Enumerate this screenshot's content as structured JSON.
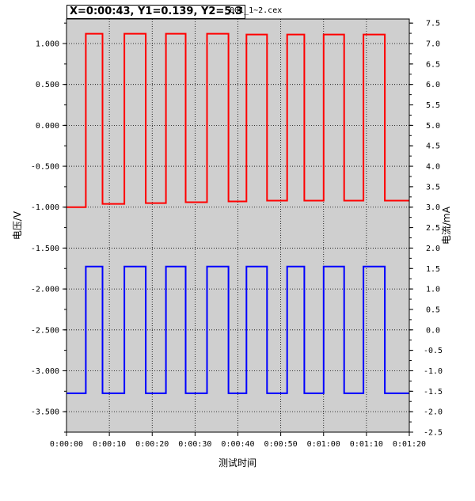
{
  "cursor_readout": "X=0:00:43, Y1=0.139, Y2=5.3",
  "file_name": "_001_1~2.cex",
  "chart_data": {
    "type": "line",
    "xlabel": "测试时间",
    "ylabel_left": "电压/V",
    "ylabel_right": "电流/mA",
    "xlim": [
      "0:00:00",
      "0:01:20"
    ],
    "ylim_left": [
      -3.75,
      1.3
    ],
    "ylim_right": [
      -2.5,
      7.6
    ],
    "x_ticks": [
      "0:00:00",
      "0:00:10",
      "0:00:20",
      "0:00:30",
      "0:00:40",
      "0:00:50",
      "0:01:00",
      "0:01:10",
      "0:01:20"
    ],
    "y_left_ticks": [
      "1.000",
      "0.500",
      "0.000",
      "-0.500",
      "-1.000",
      "-1.500",
      "-2.000",
      "-2.500",
      "-3.000",
      "-3.500"
    ],
    "y_right_ticks": [
      "7.5",
      "7.0",
      "6.5",
      "6.0",
      "5.5",
      "5.0",
      "4.5",
      "4.0",
      "3.5",
      "3.0",
      "2.5",
      "2.0",
      "1.5",
      "1.0",
      "0.5",
      "0.0",
      "-0.5",
      "-1.0",
      "-1.5",
      "-2.0",
      "-2.5"
    ],
    "grid": true,
    "plot_background": "#cfcfcf",
    "series": [
      {
        "axis": "left",
        "color": "#ff0000",
        "points": [
          [
            0,
            -1.0
          ],
          [
            4.5,
            -1.0
          ],
          [
            4.5,
            1.12
          ],
          [
            8.4,
            1.12
          ],
          [
            8.4,
            -0.96
          ],
          [
            13.5,
            -0.96
          ],
          [
            13.5,
            1.12
          ],
          [
            18.5,
            1.12
          ],
          [
            18.5,
            -0.95
          ],
          [
            23.2,
            -0.95
          ],
          [
            23.2,
            1.12
          ],
          [
            27.8,
            1.12
          ],
          [
            27.8,
            -0.94
          ],
          [
            32.8,
            -0.94
          ],
          [
            32.8,
            1.12
          ],
          [
            37.8,
            1.12
          ],
          [
            37.8,
            -0.93
          ],
          [
            42.0,
            -0.93
          ],
          [
            42.0,
            1.11
          ],
          [
            46.8,
            1.11
          ],
          [
            46.8,
            -0.92
          ],
          [
            51.5,
            -0.92
          ],
          [
            51.5,
            1.11
          ],
          [
            55.5,
            1.11
          ],
          [
            55.5,
            -0.92
          ],
          [
            60.0,
            -0.92
          ],
          [
            60.0,
            1.11
          ],
          [
            64.8,
            1.11
          ],
          [
            64.8,
            -0.92
          ],
          [
            69.3,
            -0.92
          ],
          [
            69.3,
            1.11
          ],
          [
            74.3,
            1.11
          ],
          [
            74.3,
            -0.92
          ],
          [
            80.0,
            -0.92
          ]
        ]
      },
      {
        "axis": "right",
        "color": "#0000ff",
        "points": [
          [
            0,
            -1.55
          ],
          [
            4.5,
            -1.55
          ],
          [
            4.5,
            1.55
          ],
          [
            8.4,
            1.55
          ],
          [
            8.4,
            -1.55
          ],
          [
            13.5,
            -1.55
          ],
          [
            13.5,
            1.55
          ],
          [
            18.5,
            1.55
          ],
          [
            18.5,
            -1.55
          ],
          [
            23.2,
            -1.55
          ],
          [
            23.2,
            1.55
          ],
          [
            27.8,
            1.55
          ],
          [
            27.8,
            -1.55
          ],
          [
            32.8,
            -1.55
          ],
          [
            32.8,
            1.55
          ],
          [
            37.8,
            1.55
          ],
          [
            37.8,
            -1.55
          ],
          [
            42.0,
            -1.55
          ],
          [
            42.0,
            1.55
          ],
          [
            46.8,
            1.55
          ],
          [
            46.8,
            -1.55
          ],
          [
            51.5,
            -1.55
          ],
          [
            51.5,
            1.55
          ],
          [
            55.5,
            1.55
          ],
          [
            55.5,
            -1.55
          ],
          [
            60.0,
            -1.55
          ],
          [
            60.0,
            1.55
          ],
          [
            64.8,
            1.55
          ],
          [
            64.8,
            -1.55
          ],
          [
            69.3,
            -1.55
          ],
          [
            69.3,
            1.55
          ],
          [
            74.3,
            1.55
          ],
          [
            74.3,
            -1.55
          ],
          [
            80.0,
            -1.55
          ]
        ]
      }
    ]
  }
}
